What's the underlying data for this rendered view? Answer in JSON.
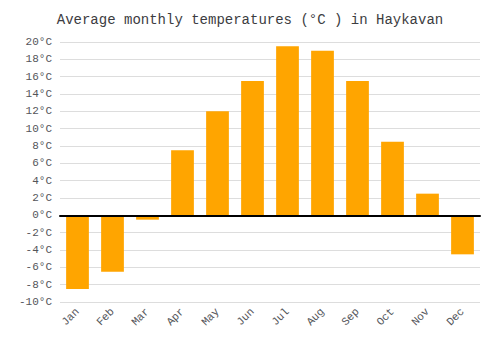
{
  "chart_data": {
    "type": "bar",
    "title": "Average monthly temperatures (°C ) in Haykavan",
    "categories": [
      "Jan",
      "Feb",
      "Mar",
      "Apr",
      "May",
      "Jun",
      "Jul",
      "Aug",
      "Sep",
      "Oct",
      "Nov",
      "Dec"
    ],
    "values": [
      -8.5,
      -6.5,
      -0.5,
      7.5,
      12.0,
      15.5,
      19.5,
      19.0,
      15.5,
      8.5,
      2.5,
      -4.5
    ],
    "color": "#FFA500",
    "ylim": [
      -10,
      20
    ],
    "yticks": [
      {
        "value": -10,
        "label": "-10°C"
      },
      {
        "value": -8,
        "label": "-8°C"
      },
      {
        "value": -6,
        "label": "-6°C"
      },
      {
        "value": -4,
        "label": "-4°C"
      },
      {
        "value": -2,
        "label": "-2°C"
      },
      {
        "value": 0,
        "label": "0°C"
      },
      {
        "value": 2,
        "label": "2°C"
      },
      {
        "value": 4,
        "label": "4°C"
      },
      {
        "value": 6,
        "label": "6°C"
      },
      {
        "value": 8,
        "label": "8°C"
      },
      {
        "value": 10,
        "label": "10°C"
      },
      {
        "value": 12,
        "label": "12°C"
      },
      {
        "value": 14,
        "label": "14°C"
      },
      {
        "value": 16,
        "label": "16°C"
      },
      {
        "value": 18,
        "label": "18°C"
      },
      {
        "value": 20,
        "label": "20°C"
      }
    ],
    "grid": true
  }
}
